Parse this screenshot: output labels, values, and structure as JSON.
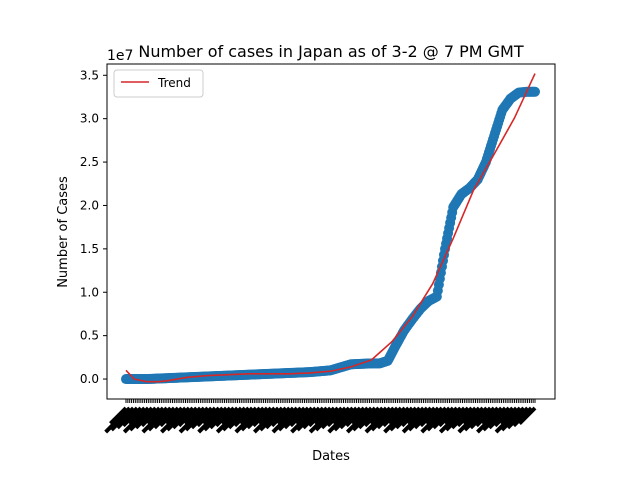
{
  "chart_data": {
    "type": "scatter",
    "title": "Number of cases in Japan as of 3-2 @ 7 PM GMT",
    "xlabel": "Dates",
    "ylabel": "Number of Cases",
    "y_multiplier_label": "1e7",
    "ylim": [
      -2300000,
      36300000
    ],
    "yticks": [
      0.0,
      0.5,
      1.0,
      1.5,
      2.0,
      2.5,
      3.0,
      3.5
    ],
    "y_tick_scale": 10000000,
    "legend": {
      "position": "upper-left",
      "entries": [
        "Trend"
      ]
    },
    "grid": false,
    "x_tick_labels_note": "illegible dense rotated date labels",
    "series": [
      {
        "kind": "scatter",
        "color": "#1f77b4",
        "x": [
          0,
          0.05,
          0.1,
          0.15,
          0.2,
          0.25,
          0.3,
          0.35,
          0.4,
          0.45,
          0.5,
          0.55,
          0.6,
          0.62,
          0.64,
          0.66,
          0.68,
          0.7,
          0.72,
          0.74,
          0.76,
          0.78,
          0.8,
          0.82,
          0.84,
          0.86,
          0.88,
          0.9,
          0.92,
          0.94,
          0.96,
          0.98,
          1.0
        ],
        "y": [
          0,
          0,
          100000,
          200000,
          300000,
          400000,
          500000,
          600000,
          700000,
          800000,
          1000000,
          1700000,
          1800000,
          1800000,
          2100000,
          3900000,
          5600000,
          6900000,
          8100000,
          9000000,
          9500000,
          15000000,
          19800000,
          21300000,
          22000000,
          23000000,
          25000000,
          28000000,
          31000000,
          32300000,
          33000000,
          33100000,
          33100000
        ]
      },
      {
        "name": "Trend",
        "kind": "line",
        "color": "#d62728",
        "x": [
          0,
          0.02,
          0.05,
          0.08,
          0.1,
          0.15,
          0.2,
          0.3,
          0.4,
          0.45,
          0.5,
          0.55,
          0.6,
          0.65,
          0.7,
          0.75,
          0.8,
          0.85,
          0.9,
          0.95,
          1.0
        ],
        "y": [
          1000000,
          0,
          -300000,
          -300000,
          -200000,
          200000,
          400000,
          600000,
          600000,
          700000,
          900000,
          1400000,
          2200000,
          4300000,
          7200000,
          11000000,
          16200000,
          21800000,
          25900000,
          30100000,
          35200000
        ]
      }
    ]
  }
}
